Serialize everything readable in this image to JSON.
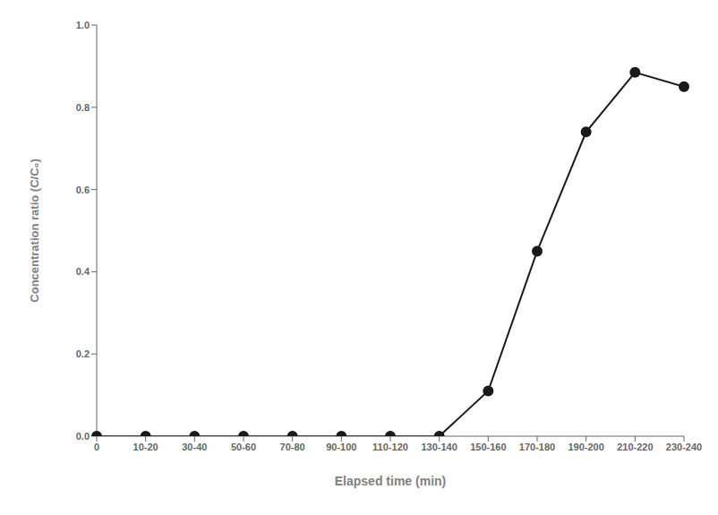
{
  "chart_data": {
    "type": "line",
    "xlabel": "Elapsed time (min)",
    "ylabel": "Concentration ratio (C/C₀)",
    "categories": [
      "0",
      "10-20",
      "30-40",
      "50-60",
      "70-80",
      "90-100",
      "110-120",
      "130-140",
      "150-160",
      "170-180",
      "190-200",
      "210-220",
      "230-240"
    ],
    "values": [
      0.0,
      0.0,
      0.0,
      0.0,
      0.0,
      0.0,
      0.0,
      0.0,
      0.11,
      0.45,
      0.74,
      0.885,
      0.85
    ],
    "color": "#1a1a1a",
    "marker": "circle",
    "ylim": [
      0.0,
      1.0
    ],
    "yticks": [
      {
        "value": 0,
        "label": "0.0"
      },
      0.2,
      0.4,
      0.6,
      0.8,
      {
        "value": 1,
        "label": "1.0"
      }
    ],
    "grid": false
  }
}
